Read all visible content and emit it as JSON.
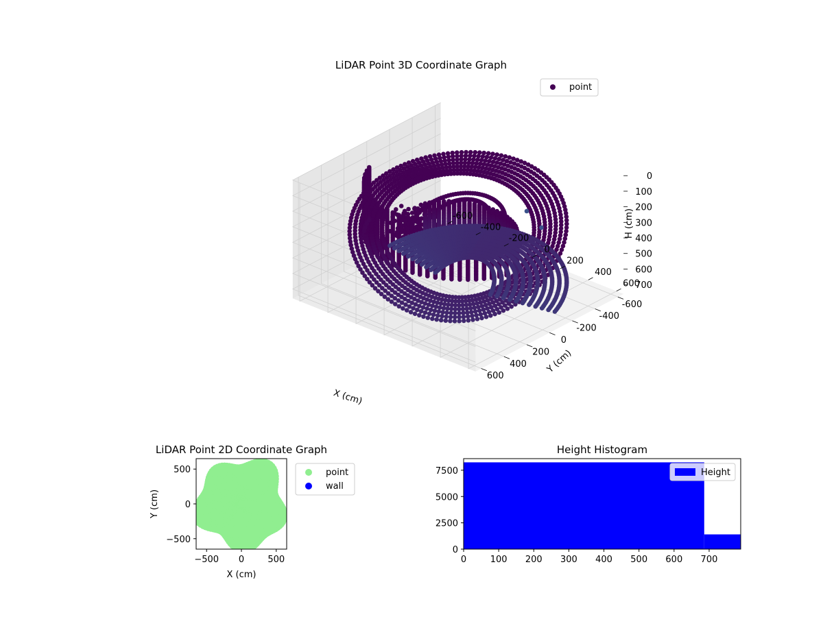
{
  "chart_data": [
    {
      "type": "scatter3d",
      "title": "LiDAR Point 3D Coordinate Graph",
      "xlabel": "X (cm)",
      "ylabel": "Y (cm)",
      "zlabel": "H (cm)",
      "xlim": [
        -650,
        650
      ],
      "ylim": [
        -650,
        650
      ],
      "zlim": [
        0,
        760
      ],
      "z_inverted": true,
      "xticks": [
        -600,
        -400,
        -200,
        0,
        200,
        400,
        600
      ],
      "yticks": [
        -600,
        -400,
        -200,
        0,
        200,
        400,
        600
      ],
      "zticks": [
        0,
        100,
        200,
        300,
        400,
        500,
        600,
        700
      ],
      "grid": true,
      "legend": {
        "placement": "top-right",
        "entries": [
          "point"
        ]
      },
      "series": [
        {
          "name": "point",
          "color": "#440154",
          "color_low": "#3b528b",
          "shape": "bowl",
          "rim_radius": 600,
          "rim_height": 0,
          "bottom_height": 720
        }
      ]
    },
    {
      "type": "scatter",
      "title": "LiDAR Point 2D Coordinate Graph",
      "xlabel": "X (cm)",
      "ylabel": "Y (cm)",
      "xlim": [
        -650,
        650
      ],
      "ylim": [
        -650,
        650
      ],
      "xticks": [
        -500,
        0,
        500
      ],
      "yticks": [
        -500,
        0,
        500
      ],
      "legend": {
        "placement": "outside-right",
        "entries": [
          "point",
          "wall"
        ]
      },
      "series": [
        {
          "name": "point",
          "color": "#90ee90"
        },
        {
          "name": "wall",
          "color": "#0000ff"
        }
      ]
    },
    {
      "type": "bar",
      "title": "Height Histogram",
      "xlim": [
        0,
        790
      ],
      "ylim": [
        0,
        8600
      ],
      "xticks": [
        0,
        100,
        200,
        300,
        400,
        500,
        600,
        700
      ],
      "yticks": [
        0,
        2500,
        5000,
        7500
      ],
      "legend": {
        "placement": "top-right",
        "entries": [
          "Height"
        ]
      },
      "series": [
        {
          "name": "Height",
          "color": "#0000ff",
          "bins": [
            {
              "x0": 0,
              "x1": 686,
              "count": 8250
            },
            {
              "x0": 686,
              "x1": 790,
              "count": 1400
            }
          ]
        }
      ]
    }
  ]
}
